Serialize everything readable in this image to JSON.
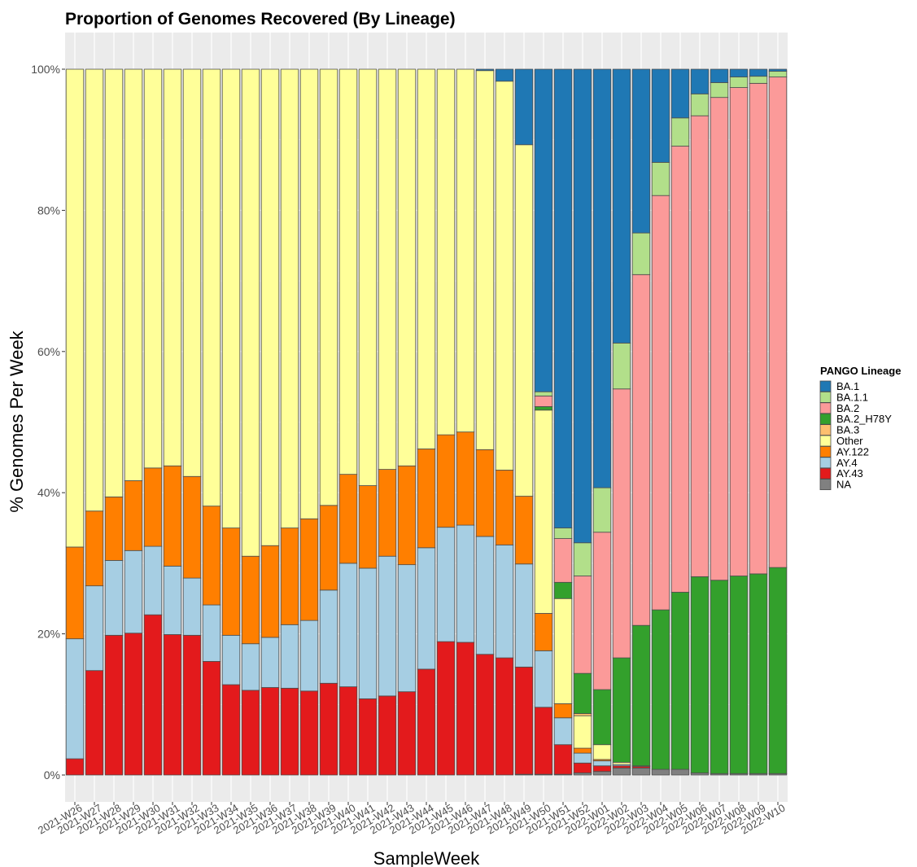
{
  "chart_data": {
    "type": "stacked-bar",
    "title": "Proportion of Genomes Recovered (By Lineage)",
    "x_label": "SampleWeek",
    "y_label": "% Genomes Per Week",
    "legend_title": "PANGO Lineage",
    "legend": "right",
    "grid": true,
    "ylim": [
      0,
      100
    ],
    "yticks": [
      {
        "value": 0,
        "label": "0%"
      },
      {
        "value": 20,
        "label": "20%"
      },
      {
        "value": 40,
        "label": "40%"
      },
      {
        "value": 60,
        "label": "60%"
      },
      {
        "value": 80,
        "label": "80%"
      },
      {
        "value": 100,
        "label": "100%"
      }
    ],
    "categories": [
      "2021-W26",
      "2021-W27",
      "2021-W28",
      "2021-W29",
      "2021-W30",
      "2021-W31",
      "2021-W32",
      "2021-W33",
      "2021-W34",
      "2021-W35",
      "2021-W36",
      "2021-W37",
      "2021-W38",
      "2021-W39",
      "2021-W40",
      "2021-W41",
      "2021-W42",
      "2021-W43",
      "2021-W44",
      "2021-W45",
      "2021-W46",
      "2021-W47",
      "2021-W48",
      "2021-W49",
      "2021-W50",
      "2021-W51",
      "2021-W52",
      "2022-W01",
      "2022-W02",
      "2022-W03",
      "2022-W04",
      "2022-W05",
      "2022-W06",
      "2022-W07",
      "2022-W08",
      "2022-W09",
      "2022-W10"
    ],
    "series": [
      {
        "name": "BA.1",
        "color": "#1f78b4",
        "values": [
          0,
          0,
          0,
          0,
          0,
          0,
          0,
          0,
          0,
          0,
          0,
          0,
          0,
          0,
          0,
          0,
          0,
          0,
          0,
          0,
          0,
          0.2,
          1.7,
          10.7,
          45.7,
          65,
          67.1,
          59.3,
          38.8,
          23.2,
          13.2,
          6.9,
          3.5,
          1.9,
          1.1,
          1,
          0.3
        ]
      },
      {
        "name": "BA.1.1",
        "color": "#b2df8a",
        "values": [
          0,
          0,
          0,
          0,
          0,
          0,
          0,
          0,
          0,
          0,
          0,
          0,
          0,
          0,
          0,
          0,
          0,
          0,
          0,
          0,
          0,
          0,
          0,
          0,
          0.6,
          1.5,
          4.7,
          6.3,
          6.5,
          5.9,
          4.7,
          4,
          3.1,
          2.1,
          1.5,
          1,
          0.8
        ]
      },
      {
        "name": "BA.2",
        "color": "#fb9a99",
        "values": [
          0,
          0,
          0,
          0,
          0,
          0,
          0,
          0,
          0,
          0,
          0,
          0,
          0,
          0,
          0,
          0,
          0,
          0,
          0,
          0,
          0,
          0,
          0,
          0,
          1.5,
          6.2,
          13.8,
          22.3,
          38.1,
          49.7,
          58.7,
          63.2,
          65.3,
          68.4,
          69.2,
          69.5,
          69.5
        ]
      },
      {
        "name": "BA.2_H78Y",
        "color": "#33a02c",
        "values": [
          0,
          0,
          0,
          0,
          0,
          0,
          0,
          0,
          0,
          0,
          0,
          0,
          0,
          0,
          0,
          0,
          0,
          0,
          0,
          0,
          0,
          0,
          0,
          0,
          0.5,
          2.3,
          5.7,
          7.8,
          14.8,
          19.9,
          22.6,
          25.1,
          27.8,
          27.4,
          28,
          28.3,
          29.2
        ]
      },
      {
        "name": "BA.3",
        "color": "#fdbf6f",
        "values": [
          0,
          0,
          0,
          0,
          0,
          0,
          0,
          0,
          0,
          0,
          0,
          0,
          0,
          0,
          0,
          0,
          0,
          0,
          0,
          0,
          0,
          0,
          0,
          0,
          0,
          0,
          0.3,
          0,
          0,
          0,
          0,
          0,
          0,
          0,
          0,
          0,
          0
        ]
      },
      {
        "name": "Other",
        "color": "#ffff99",
        "values": [
          67.7,
          62.6,
          60.6,
          58.3,
          56.5,
          56.2,
          57.7,
          61.9,
          65,
          69,
          67.5,
          65,
          63.7,
          61.8,
          57.4,
          59,
          56.7,
          56.2,
          53.8,
          51.8,
          51.4,
          53.7,
          55.1,
          49.8,
          28.8,
          14.9,
          4.6,
          2.1,
          0.3,
          0.1,
          0,
          0,
          0,
          0,
          0,
          0,
          0
        ]
      },
      {
        "name": "AY.122",
        "color": "#ff7f00",
        "values": [
          13,
          10.6,
          9,
          9.9,
          11.1,
          14.2,
          14.4,
          14,
          15.2,
          12.4,
          13,
          13.7,
          14.4,
          12,
          12.6,
          11.7,
          12.3,
          14,
          14,
          13.1,
          13.2,
          12.3,
          10.6,
          9.6,
          5.3,
          2,
          0.7,
          0.2,
          0,
          0,
          0,
          0,
          0,
          0,
          0,
          0,
          0
        ]
      },
      {
        "name": "AY.4",
        "color": "#a6cee3",
        "values": [
          17,
          12,
          10.6,
          11.7,
          9.7,
          9.7,
          8.1,
          8,
          7,
          6.6,
          7.1,
          9,
          10,
          13.2,
          17.5,
          18.5,
          19.8,
          18,
          17.2,
          16.2,
          16.6,
          16.7,
          16,
          14.6,
          8,
          3.8,
          1.4,
          0.7,
          0.2,
          0,
          0,
          0,
          0,
          0,
          0,
          0,
          0
        ]
      },
      {
        "name": "AY.43",
        "color": "#e31a1c",
        "values": [
          2.3,
          14.8,
          19.8,
          20.1,
          22.7,
          19.9,
          19.8,
          16.1,
          12.8,
          12,
          12.4,
          12.3,
          11.9,
          13,
          12.5,
          10.8,
          11.2,
          11.8,
          15,
          18.9,
          18.8,
          17.1,
          16.6,
          15.2,
          9.5,
          4.2,
          1.4,
          0.8,
          0.3,
          0.2,
          0,
          0,
          0,
          0,
          0,
          0,
          0
        ]
      },
      {
        "name": "NA",
        "color": "#808080",
        "values": [
          0,
          0,
          0,
          0,
          0,
          0,
          0,
          0,
          0,
          0,
          0,
          0,
          0,
          0,
          0,
          0,
          0,
          0,
          0,
          0,
          0,
          0,
          0,
          0.1,
          0.1,
          0.1,
          0.3,
          0.5,
          1,
          1,
          0.8,
          0.8,
          0.3,
          0.2,
          0.2,
          0.2,
          0.2
        ]
      }
    ]
  }
}
